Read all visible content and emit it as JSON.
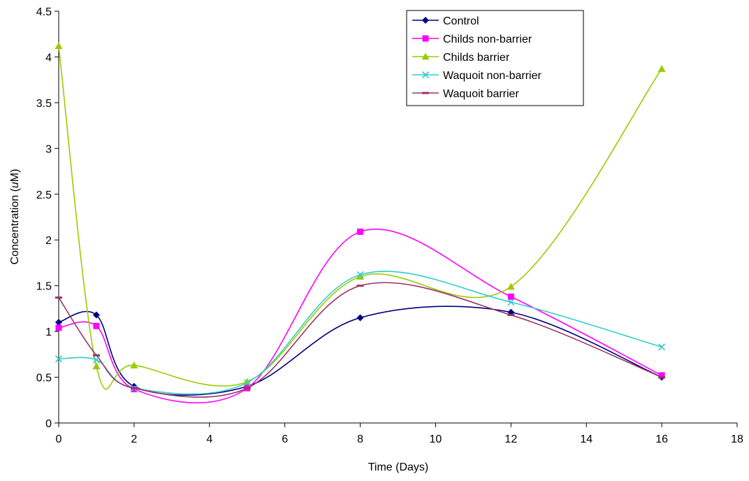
{
  "chart_data": {
    "type": "line",
    "title": "",
    "xlabel": "Time (Days)",
    "ylabel": "Concentration (uM)",
    "ylabel_parts": {
      "prefix": "Concentration (",
      "italic": "u",
      "suffix": "M)"
    },
    "xlim": [
      0,
      18
    ],
    "ylim": [
      0,
      4.5
    ],
    "x_ticks": [
      0,
      2,
      4,
      6,
      8,
      10,
      12,
      14,
      16,
      18
    ],
    "x_tick_labels": [
      "0",
      "2",
      "4",
      "6",
      "8",
      "10",
      "12",
      "14",
      "16",
      "18"
    ],
    "y_ticks": [
      0,
      0.5,
      1,
      1.5,
      2,
      2.5,
      3,
      3.5,
      4,
      4.5
    ],
    "y_tick_labels": [
      "0",
      "0.5",
      "1",
      "1.5",
      "2",
      "2.5",
      "3",
      "3.5",
      "4",
      "4.5"
    ],
    "grid": false,
    "smooth": true,
    "legend_position": "top-right",
    "x": [
      0,
      1,
      2,
      5,
      8,
      12,
      16
    ],
    "series": [
      {
        "name": "Control",
        "color": "#000080",
        "marker": "diamond",
        "values": [
          1.1,
          1.18,
          0.4,
          0.4,
          1.15,
          1.21,
          0.5
        ]
      },
      {
        "name": "Childs non-barrier",
        "color": "#FF00FF",
        "marker": "square",
        "values": [
          1.04,
          1.06,
          0.37,
          0.38,
          2.09,
          1.38,
          0.52
        ]
      },
      {
        "name": "Childs barrier",
        "color": "#99CC00",
        "marker": "triangle",
        "values": [
          4.12,
          0.62,
          0.63,
          0.45,
          1.6,
          1.49,
          3.87
        ]
      },
      {
        "name": "Waquoit non-barrier",
        "color": "#33CCCC",
        "marker": "x",
        "values": [
          0.7,
          0.69,
          0.38,
          0.44,
          1.62,
          1.32,
          0.83
        ]
      },
      {
        "name": "Waquoit barrier",
        "color": "#993366",
        "marker": "dash",
        "values": [
          1.37,
          0.74,
          0.38,
          0.38,
          1.5,
          1.18,
          0.5
        ]
      }
    ]
  }
}
